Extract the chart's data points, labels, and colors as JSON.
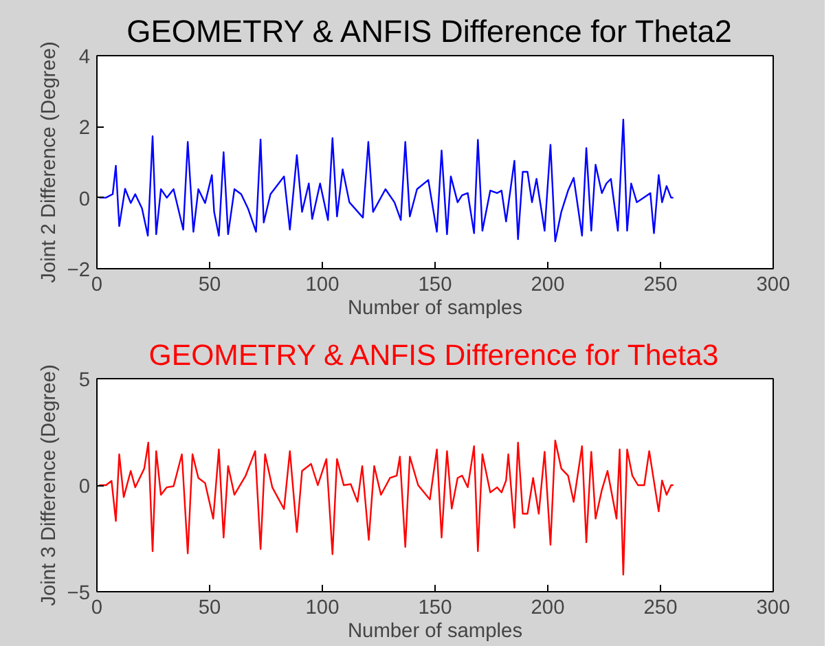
{
  "chart_data": [
    {
      "type": "line",
      "title": "GEOMETRY & ANFIS  Difference for Theta2",
      "xlabel": "Number of samples",
      "ylabel": "Joint 2 Difference (Degree)",
      "xlim": [
        0,
        300
      ],
      "ylim": [
        -2,
        4
      ],
      "xticks": [
        0,
        50,
        100,
        150,
        200,
        250,
        300
      ],
      "yticks": [
        -2,
        0,
        2,
        4
      ],
      "grid": false,
      "series": [
        {
          "color": "#0000ff",
          "x": [
            1,
            4,
            7,
            8.4,
            9.9,
            12.5,
            15,
            17,
            20,
            22.6,
            24.7,
            26.3,
            28.4,
            31,
            34,
            38.3,
            40.3,
            42.8,
            45,
            48,
            51,
            52,
            54.1,
            56.2,
            58.2,
            61,
            64,
            67,
            70.6,
            72.6,
            74,
            77,
            83,
            85.6,
            88.7,
            91,
            94,
            95.5,
            99,
            102.5,
            104.5,
            106.5,
            109,
            112,
            118,
            120.4,
            122.5,
            128,
            132,
            134.8,
            136.8,
            138.8,
            142,
            147,
            150.8,
            152.9,
            155.3,
            157,
            160,
            162,
            164.5,
            167.3,
            169,
            171,
            174.5,
            177.5,
            179.5,
            181.5,
            185.2,
            186.8,
            188.9,
            191,
            193,
            195,
            198.6,
            201.2,
            203.3,
            206,
            209,
            211.5,
            215.2,
            217.1,
            219.3,
            221.2,
            224,
            226,
            228,
            231.1,
            233.5,
            235.2,
            237,
            239.5,
            242.5,
            245.5,
            247.1,
            249.2,
            250.7,
            252.7,
            254.7,
            255.7
          ],
          "values": [
            0,
            0,
            0.1,
            0.9,
            -0.8,
            0.25,
            -0.15,
            0.1,
            -0.3,
            -1.07,
            1.73,
            -1.03,
            0.24,
            0,
            0.24,
            -0.9,
            1.57,
            -0.96,
            0.24,
            -0.15,
            0.64,
            -0.4,
            -1.07,
            1.28,
            -1.03,
            0.24,
            0.1,
            -0.3,
            -0.96,
            1.64,
            -0.7,
            0.1,
            0.6,
            -0.9,
            1.2,
            -0.4,
            0.4,
            -0.6,
            0.4,
            -0.63,
            1.68,
            -0.53,
            0.8,
            -0.13,
            -0.56,
            1.57,
            -0.4,
            0.24,
            -0.13,
            -0.63,
            1.57,
            -0.53,
            0.24,
            0.5,
            -0.96,
            1.33,
            -1.03,
            0.6,
            -0.13,
            0.07,
            0.13,
            -1,
            1.63,
            -0.93,
            0.2,
            0.13,
            0.2,
            -0.67,
            1.04,
            -1.17,
            0.73,
            0.73,
            -0.13,
            0.53,
            -0.93,
            1.49,
            -1.23,
            -0.4,
            0.2,
            0.56,
            -1.07,
            1.4,
            -0.93,
            0.93,
            0.13,
            0.4,
            0.53,
            -0.93,
            2.2,
            -0.93,
            0.4,
            -0.13,
            0,
            0.13,
            -1,
            0.64,
            -0.13,
            0.33,
            0,
            0
          ]
        }
      ]
    },
    {
      "type": "line",
      "title": "GEOMETRY & ANFIS Difference for Theta3",
      "xlabel": "Number of samples",
      "ylabel": "Joint 3 Difference (Degree)",
      "xlim": [
        0,
        300
      ],
      "ylim": [
        -5,
        5
      ],
      "xticks": [
        0,
        50,
        100,
        150,
        200,
        250,
        300
      ],
      "yticks": [
        -5,
        0,
        5
      ],
      "grid": false,
      "series": [
        {
          "color": "#ff0000",
          "x": [
            1,
            4,
            6.5,
            8.4,
            9.9,
            11.9,
            15,
            17,
            19,
            21,
            22.8,
            24.7,
            26.3,
            28.4,
            31,
            34,
            37.7,
            40.3,
            42.4,
            45,
            48,
            51.6,
            54.1,
            56.2,
            58.2,
            61,
            66,
            70.2,
            72.6,
            74.6,
            77.8,
            83,
            85.6,
            88.7,
            91,
            95,
            98,
            101.8,
            104.5,
            106.5,
            109.5,
            112.6,
            115.6,
            117.7,
            120.6,
            123,
            126,
            130,
            133,
            134.4,
            136.8,
            138.8,
            142.5,
            147.7,
            150.8,
            152.9,
            155.3,
            157.4,
            160,
            162,
            164.5,
            167.3,
            169,
            171,
            174.5,
            177.5,
            179.5,
            181.5,
            182.5,
            185.2,
            186.8,
            188.9,
            191,
            193.5,
            196,
            198.6,
            201.2,
            203.3,
            206,
            209,
            211.5,
            215.2,
            217.1,
            219.3,
            221.2,
            224,
            226.5,
            230.5,
            231.9,
            233.5,
            235.2,
            237.5,
            240,
            242.8,
            245,
            249.2,
            250.7,
            252.7,
            254.7,
            255.7
          ],
          "values": [
            0,
            0,
            0.2,
            -1.68,
            1.45,
            -0.56,
            0.67,
            -0.1,
            0.34,
            0.78,
            2.0,
            -3.1,
            1.6,
            -0.45,
            -0.1,
            -0.05,
            1.45,
            -3.2,
            1.45,
            0.34,
            0.1,
            -1.57,
            1.68,
            -2.46,
            0.9,
            -0.45,
            0.45,
            1.6,
            -3.0,
            1.45,
            -0.1,
            -1.12,
            1.6,
            -2.2,
            0.67,
            1.0,
            0,
            1.23,
            -3.24,
            1.23,
            0,
            0.05,
            -0.78,
            0.9,
            -2.57,
            0.9,
            -0.45,
            0.34,
            0.45,
            1.34,
            -2.9,
            1.34,
            0,
            -0.67,
            1.68,
            -2.46,
            1.6,
            -1.1,
            0.34,
            0.45,
            -0.1,
            1.83,
            -3.1,
            1.45,
            -0.34,
            -0.1,
            -0.34,
            0.22,
            1.45,
            -2.0,
            2.0,
            -1.34,
            -1.34,
            0.34,
            -1.34,
            1.57,
            -2.8,
            2.1,
            0.78,
            0.45,
            -0.78,
            1.83,
            -2.68,
            1.57,
            -1.57,
            -0.22,
            0.67,
            -1.57,
            1.68,
            -4.2,
            1.68,
            0.45,
            0,
            0,
            1.6,
            -1.23,
            0.22,
            -0.45,
            0,
            0
          ]
        }
      ]
    }
  ]
}
